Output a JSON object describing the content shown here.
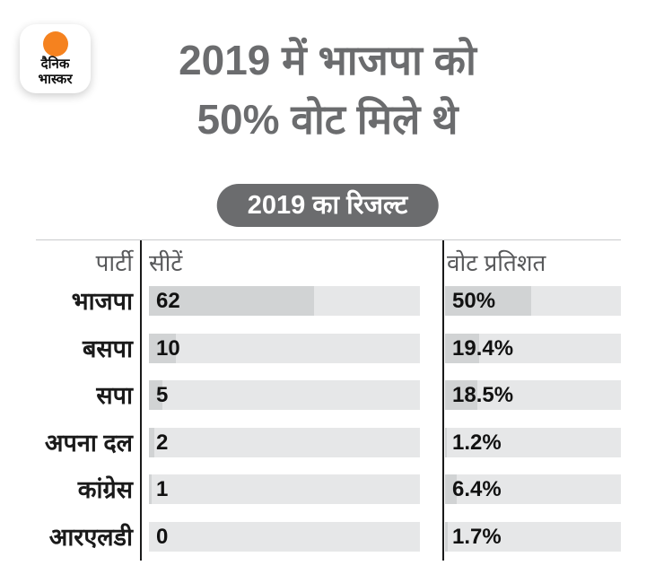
{
  "logo": {
    "line1": "दैनिक",
    "line2": "भास्कर"
  },
  "title": {
    "line1": "2019 में भाजपा को",
    "line2": "50% वोट मिले थे"
  },
  "badge": {
    "label": "2019 का रिजल्ट"
  },
  "table": {
    "headers": {
      "party": "पार्टी",
      "seats": "सीटें",
      "votes": "वोट प्रतिशत"
    },
    "rows": [
      {
        "party": "भाजपा",
        "seats": "62",
        "votes": "50%",
        "seats_fill_pct": 61.0,
        "votes_fill_pct": 49.2
      },
      {
        "party": "बसपा",
        "seats": "10",
        "votes": "19.4%",
        "seats_fill_pct": 9.8,
        "votes_fill_pct": 19.4
      },
      {
        "party": "सपा",
        "seats": "5",
        "votes": "18.5%",
        "seats_fill_pct": 4.9,
        "votes_fill_pct": 18.5
      },
      {
        "party": "अपना दल",
        "seats": "2",
        "votes": "1.2%",
        "seats_fill_pct": 2.0,
        "votes_fill_pct": 1.2
      },
      {
        "party": "कांग्रेस",
        "seats": "1",
        "votes": "6.4%",
        "seats_fill_pct": 1.0,
        "votes_fill_pct": 6.4
      },
      {
        "party": "आरएलडी",
        "seats": "0",
        "votes": "1.7%",
        "seats_fill_pct": 0.0,
        "votes_fill_pct": 1.7
      }
    ]
  },
  "chart_data": {
    "type": "bar",
    "orientation": "horizontal",
    "title": "2019 में भाजपा को 50% वोट मिले थे",
    "subtitle": "2019 का रिजल्ट",
    "categories": [
      "भाजपा",
      "बसपा",
      "सपा",
      "अपना दल",
      "कांग्रेस",
      "आरएलडी"
    ],
    "series": [
      {
        "name": "सीटें",
        "values": [
          62,
          10,
          5,
          2,
          1,
          0
        ]
      },
      {
        "name": "वोट प्रतिशत",
        "values": [
          50,
          19.4,
          18.5,
          1.2,
          6.4,
          1.7
        ]
      }
    ],
    "xlabel": "",
    "ylabel": "पार्टी",
    "grid": false,
    "legend_position": "column-headers"
  },
  "colors": {
    "accent_orange": "#f5821f",
    "title_gray": "#6b6c6e",
    "badge_bg": "#6b6c6e",
    "bar_fill": "#d1d3d4",
    "bar_bg": "#e6e7e8",
    "header_text": "#58595b",
    "text_black": "#1a1a1a",
    "rule_gray": "#c9cacc"
  }
}
